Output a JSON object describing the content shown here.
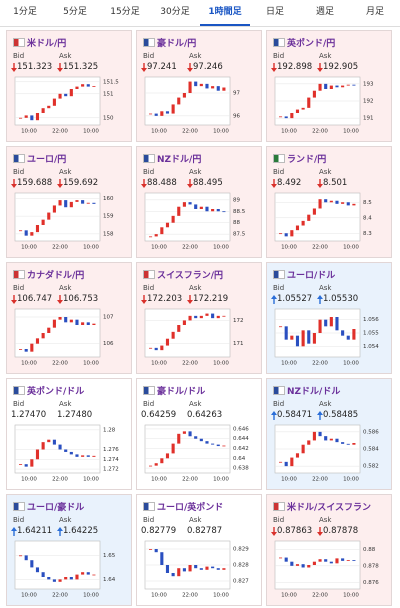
{
  "tabs": [
    "1分足",
    "5分足",
    "15分足",
    "30分足",
    "1時間足",
    "日足",
    "週足",
    "月足"
  ],
  "active_tab": 4,
  "bid_label": "Bid",
  "ask_label": "Ask",
  "chart_x_labels": [
    "10:00",
    "22:00",
    "10:00"
  ],
  "cards": [
    {
      "name": "米ドル/円",
      "trend": "down",
      "bid": "151.323",
      "ask": "151.325",
      "chart": {
        "ylim": [
          149.7,
          151.7
        ],
        "yticks": [
          151.5,
          151,
          150
        ],
        "closes": [
          150.0,
          150.1,
          149.9,
          150.2,
          150.4,
          150.5,
          150.8,
          151.0,
          150.9,
          151.2,
          151.3,
          151.4,
          151.3,
          151.32
        ]
      }
    },
    {
      "name": "豪ドル/円",
      "trend": "down",
      "bid": "97.241",
      "ask": "97.246",
      "chart": {
        "ylim": [
          95.6,
          97.7
        ],
        "yticks": [
          97,
          96
        ],
        "closes": [
          96.1,
          96.0,
          96.2,
          96.1,
          96.5,
          96.8,
          97.0,
          97.5,
          97.3,
          97.4,
          97.2,
          97.3,
          97.1,
          97.24
        ]
      }
    },
    {
      "name": "英ポンド/円",
      "trend": "down",
      "bid": "192.898",
      "ask": "192.905",
      "chart": {
        "ylim": [
          190.6,
          193.4
        ],
        "yticks": [
          193,
          192,
          191
        ],
        "closes": [
          191.1,
          191.0,
          191.3,
          191.5,
          191.6,
          192.2,
          192.6,
          193.0,
          192.7,
          192.9,
          192.8,
          192.9,
          192.95,
          192.9
        ]
      }
    },
    {
      "name": "ユーロ/円",
      "trend": "down",
      "bid": "159.688",
      "ask": "159.692",
      "chart": {
        "ylim": [
          157.6,
          160.3
        ],
        "yticks": [
          160,
          159,
          158
        ],
        "closes": [
          158.2,
          157.9,
          158.1,
          158.5,
          158.8,
          159.2,
          159.6,
          159.9,
          159.5,
          159.8,
          159.9,
          159.7,
          159.75,
          159.69
        ]
      }
    },
    {
      "name": "NZドル/円",
      "trend": "down",
      "bid": "88.488",
      "ask": "88.495",
      "chart": {
        "ylim": [
          87.2,
          89.3
        ],
        "yticks": [
          89,
          88.5,
          88,
          87.5
        ],
        "closes": [
          87.4,
          87.5,
          87.8,
          88.0,
          88.3,
          88.7,
          88.9,
          88.8,
          88.6,
          88.7,
          88.5,
          88.6,
          88.5,
          88.49
        ]
      }
    },
    {
      "name": "ランド/円",
      "trend": "down",
      "bid": "8.492",
      "ask": "8.501",
      "chart": {
        "ylim": [
          8.25,
          8.56
        ],
        "yticks": [
          8.5,
          8.4,
          8.3
        ],
        "closes": [
          8.3,
          8.28,
          8.32,
          8.35,
          8.38,
          8.42,
          8.46,
          8.52,
          8.5,
          8.51,
          8.49,
          8.5,
          8.48,
          8.49
        ]
      }
    },
    {
      "name": "カナダドル/円",
      "trend": "down",
      "bid": "106.747",
      "ask": "106.753",
      "chart": {
        "ylim": [
          105.5,
          107.3
        ],
        "yticks": [
          107,
          106
        ],
        "closes": [
          105.8,
          105.7,
          106.0,
          106.2,
          106.4,
          106.6,
          106.9,
          107.0,
          106.8,
          106.9,
          106.7,
          106.8,
          106.7,
          106.75
        ]
      }
    },
    {
      "name": "スイスフラン/円",
      "trend": "down",
      "bid": "172.203",
      "ask": "172.219",
      "chart": {
        "ylim": [
          170.4,
          172.5
        ],
        "yticks": [
          172,
          171
        ],
        "closes": [
          170.8,
          170.7,
          170.9,
          171.2,
          171.5,
          171.8,
          172.0,
          172.2,
          172.1,
          172.2,
          172.3,
          172.1,
          172.2,
          172.2
        ]
      }
    },
    {
      "name": "ユーロ/ドル",
      "trend": "up",
      "bid": "1.05527",
      "ask": "1.05530",
      "chart": {
        "ylim": [
          1.0532,
          1.0568
        ],
        "yticks": [
          1.056,
          1.055,
          1.054
        ],
        "closes": [
          1.0555,
          1.0545,
          1.0548,
          1.054,
          1.0552,
          1.0542,
          1.055,
          1.056,
          1.0555,
          1.0562,
          1.0552,
          1.0548,
          1.0545,
          1.0553
        ]
      }
    },
    {
      "name": "英ポンド/ドル",
      "trend": null,
      "bid": "1.27470",
      "ask": "1.27480",
      "chart": {
        "ylim": [
          1.2712,
          1.281
        ],
        "yticks": [
          1.28,
          1.276,
          1.274,
          1.272
        ],
        "closes": [
          1.273,
          1.2725,
          1.274,
          1.276,
          1.2775,
          1.278,
          1.277,
          1.276,
          1.2755,
          1.275,
          1.2745,
          1.2748,
          1.2745,
          1.2747
        ]
      }
    },
    {
      "name": "豪ドル/ドル",
      "trend": null,
      "bid": "0.64259",
      "ask": "0.64263",
      "chart": {
        "ylim": [
          0.637,
          0.6468
        ],
        "yticks": [
          0.646,
          0.644,
          0.642,
          0.64,
          0.638
        ],
        "closes": [
          0.6385,
          0.639,
          0.64,
          0.641,
          0.643,
          0.645,
          0.6455,
          0.6445,
          0.644,
          0.6435,
          0.643,
          0.6428,
          0.6425,
          0.6426
        ]
      }
    },
    {
      "name": "NZドル/ドル",
      "trend": "up",
      "bid": "0.58471",
      "ask": "0.58485",
      "chart": {
        "ylim": [
          0.5812,
          0.5868
        ],
        "yticks": [
          0.586,
          0.584,
          0.582
        ],
        "closes": [
          0.5825,
          0.582,
          0.583,
          0.5835,
          0.5845,
          0.585,
          0.586,
          0.5855,
          0.585,
          0.5852,
          0.5848,
          0.5846,
          0.5845,
          0.5847
        ]
      }
    },
    {
      "name": "ユーロ/豪ドル",
      "trend": "up",
      "bid": "1.64211",
      "ask": "1.64225",
      "chart": {
        "ylim": [
          1.636,
          1.656
        ],
        "yticks": [
          1.65,
          1.64
        ],
        "closes": [
          1.65,
          1.648,
          1.645,
          1.643,
          1.641,
          1.64,
          1.639,
          1.64,
          1.641,
          1.64,
          1.642,
          1.643,
          1.642,
          1.642
        ]
      }
    },
    {
      "name": "ユーロ/英ポンド",
      "trend": null,
      "bid": "0.82779",
      "ask": "0.82787",
      "chart": {
        "ylim": [
          0.8265,
          0.8295
        ],
        "yticks": [
          0.829,
          0.828,
          0.827
        ],
        "closes": [
          0.829,
          0.8288,
          0.828,
          0.8275,
          0.8273,
          0.8278,
          0.8276,
          0.828,
          0.8278,
          0.8277,
          0.8279,
          0.8278,
          0.8277,
          0.8278
        ]
      }
    },
    {
      "name": "米ドル/スイスフラン",
      "trend": "down",
      "bid": "0.87863",
      "ask": "0.87878",
      "chart": {
        "ylim": [
          0.8752,
          0.881
        ],
        "yticks": [
          0.88,
          0.878,
          0.876
        ],
        "closes": [
          0.879,
          0.8785,
          0.878,
          0.8782,
          0.8778,
          0.8781,
          0.8785,
          0.8788,
          0.8785,
          0.8783,
          0.8789,
          0.8786,
          0.8787,
          0.8786
        ]
      }
    }
  ]
}
